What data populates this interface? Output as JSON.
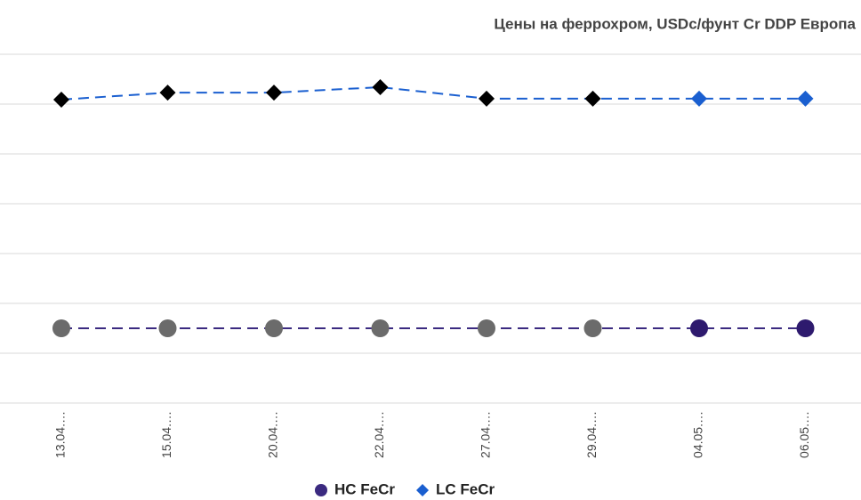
{
  "chart_data": {
    "type": "line",
    "title": "Цены на феррохром, USDc/фунт Cr DDP Европа",
    "categories": [
      "13.04.…",
      "15.04.…",
      "20.04.…",
      "22.04.…",
      "27.04.…",
      "29.04.…",
      "04.05.…",
      "06.05.…"
    ],
    "series": [
      {
        "name": "HC FeCr",
        "color": "#3b2a80",
        "marker": "circle",
        "point_colors": [
          "#6b6b6b",
          "#6b6b6b",
          "#6b6b6b",
          "#6b6b6b",
          "#6b6b6b",
          "#6b6b6b",
          "#2e1a6e",
          "#2e1a6e"
        ],
        "values": [
          1.5,
          1.5,
          1.5,
          1.5,
          1.5,
          1.5,
          1.5,
          1.5
        ]
      },
      {
        "name": "LC FeCr",
        "color": "#1a5fd0",
        "marker": "diamond",
        "point_colors": [
          "#000000",
          "#000000",
          "#000000",
          "#000000",
          "#000000",
          "#000000",
          "#1a5fd0",
          "#1a5fd0"
        ],
        "values": [
          6.09,
          6.23,
          6.23,
          6.34,
          6.11,
          6.11,
          6.11,
          6.11
        ]
      }
    ],
    "ylim": [
      0,
      7
    ],
    "yticks": [
      0,
      1,
      2,
      3,
      4,
      5,
      6,
      7
    ],
    "grid": true,
    "legend": "bottom"
  }
}
